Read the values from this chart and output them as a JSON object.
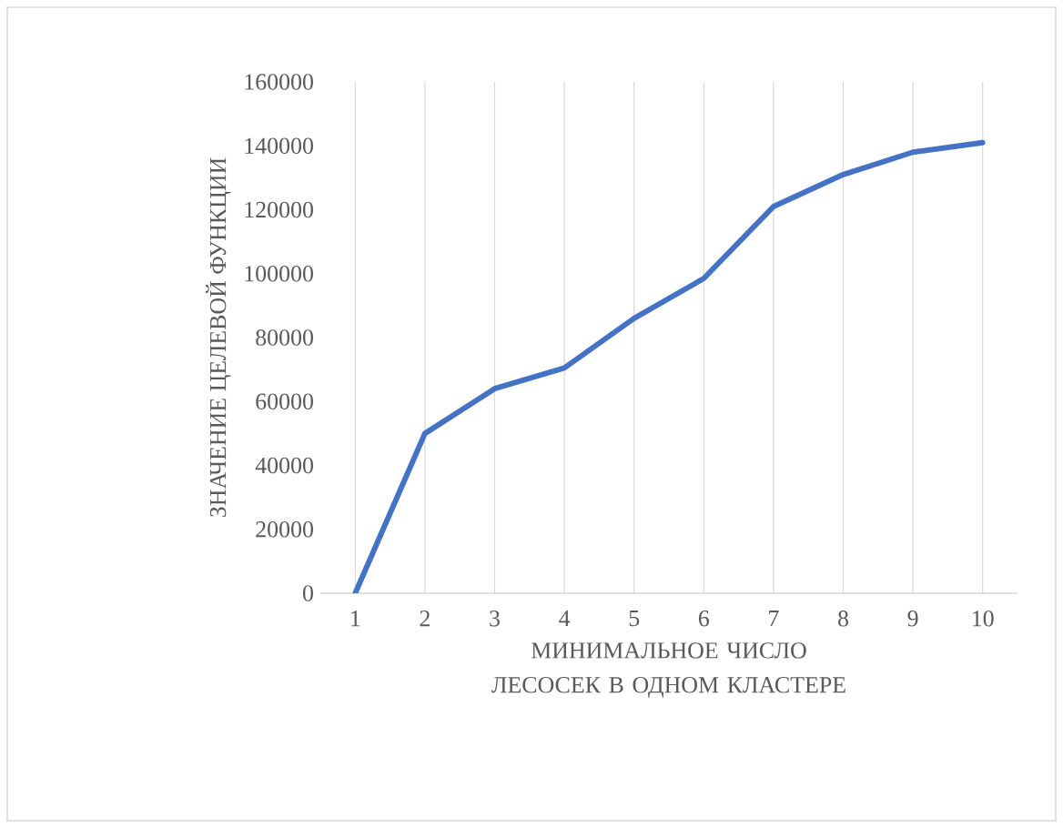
{
  "chart_data": {
    "type": "line",
    "categories": [
      "1",
      "2",
      "3",
      "4",
      "5",
      "6",
      "7",
      "8",
      "9",
      "10"
    ],
    "values": [
      0,
      50000,
      64000,
      70500,
      86000,
      98500,
      121000,
      131000,
      138000,
      141000
    ],
    "color": "#4472c4",
    "xlabel": "МИНИМАЛЬНОЕ ЧИСЛО ЛЕСОСЕК В ОДНОМ КЛАСТЕРЕ",
    "ylabel": "ЗНАЧЕНИЕ ЦЕЛЕВОЙ ФУНКЦИИ",
    "ylim": [
      0,
      160000
    ],
    "yticks": [
      0,
      20000,
      40000,
      60000,
      80000,
      100000,
      120000,
      140000,
      160000
    ],
    "grid": "x",
    "marker": "none",
    "line_style": "solid"
  }
}
